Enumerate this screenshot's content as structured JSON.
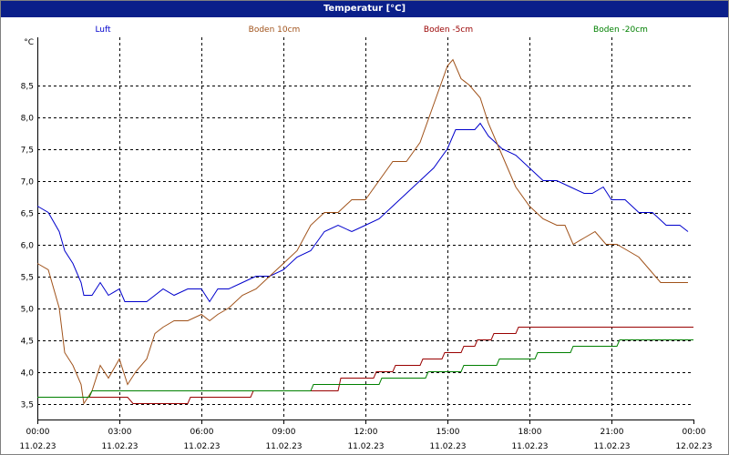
{
  "window_title": "Temperatur [°C]",
  "chart_data": {
    "type": "line",
    "title": "Temperatur [°C]",
    "ylabel": "°C",
    "xlabel": "",
    "ylim": [
      3.25,
      9.25
    ],
    "xlim": [
      0,
      24
    ],
    "y_ticks": [
      "3,5",
      "4,0",
      "4,5",
      "5,0",
      "5,5",
      "6,0",
      "6,5",
      "7,0",
      "7,5",
      "8,0",
      "8,5"
    ],
    "y_tick_values": [
      3.5,
      4.0,
      4.5,
      5.0,
      5.5,
      6.0,
      6.5,
      7.0,
      7.5,
      8.0,
      8.5
    ],
    "x_tick_hours": [
      0,
      3,
      6,
      9,
      12,
      15,
      18,
      21,
      24
    ],
    "x_tick_times": [
      "00:00",
      "03:00",
      "06:00",
      "09:00",
      "12:00",
      "15:00",
      "18:00",
      "21:00",
      "00:00"
    ],
    "x_tick_dates": [
      "11.02.23",
      "11.02.23",
      "11.02.23",
      "11.02.23",
      "11.02.23",
      "11.02.23",
      "11.02.23",
      "11.02.23",
      "12.02.23"
    ],
    "grid": true,
    "legend_position": "top",
    "series": [
      {
        "name": "Luft",
        "color": "#0000cc",
        "x": [
          0,
          0.4,
          0.8,
          1.0,
          1.3,
          1.6,
          1.7,
          2.0,
          2.3,
          2.6,
          3.0,
          3.2,
          3.6,
          4.0,
          4.6,
          5.0,
          5.5,
          6.0,
          6.3,
          6.6,
          7.0,
          7.5,
          8.0,
          8.5,
          9.0,
          9.5,
          10.0,
          10.5,
          11.0,
          11.5,
          12.0,
          12.5,
          13.0,
          13.5,
          14.0,
          14.5,
          15.0,
          15.3,
          15.6,
          16.0,
          16.2,
          16.5,
          17.0,
          17.5,
          18.0,
          18.5,
          19.0,
          19.5,
          20.0,
          20.3,
          20.7,
          21.0,
          21.5,
          22.0,
          22.5,
          23.0,
          23.5,
          23.8
        ],
        "values": [
          6.6,
          6.5,
          6.2,
          5.9,
          5.7,
          5.4,
          5.2,
          5.2,
          5.4,
          5.2,
          5.3,
          5.1,
          5.1,
          5.1,
          5.3,
          5.2,
          5.3,
          5.3,
          5.1,
          5.3,
          5.3,
          5.4,
          5.5,
          5.5,
          5.6,
          5.8,
          5.9,
          6.2,
          6.3,
          6.2,
          6.3,
          6.4,
          6.6,
          6.8,
          7.0,
          7.2,
          7.5,
          7.8,
          7.8,
          7.8,
          7.9,
          7.7,
          7.5,
          7.4,
          7.2,
          7.0,
          7.0,
          6.9,
          6.8,
          6.8,
          6.9,
          6.7,
          6.7,
          6.5,
          6.5,
          6.3,
          6.3,
          6.2
        ]
      },
      {
        "name": "Boden 10cm",
        "color": "#a0521a",
        "x": [
          0,
          0.4,
          0.8,
          1.0,
          1.3,
          1.6,
          1.7,
          2.0,
          2.3,
          2.6,
          3.0,
          3.3,
          3.6,
          4.0,
          4.3,
          4.6,
          5.0,
          5.5,
          6.0,
          6.3,
          6.6,
          7.0,
          7.5,
          8.0,
          8.5,
          9.0,
          9.5,
          10.0,
          10.5,
          11.0,
          11.5,
          12.0,
          12.5,
          13.0,
          13.5,
          14.0,
          14.5,
          15.0,
          15.2,
          15.5,
          15.8,
          16.2,
          16.5,
          17.0,
          17.5,
          18.0,
          18.5,
          19.0,
          19.3,
          19.6,
          20.0,
          20.4,
          20.8,
          21.2,
          21.6,
          22.0,
          22.4,
          22.8,
          23.2,
          23.8
        ],
        "values": [
          5.7,
          5.6,
          5.0,
          4.3,
          4.1,
          3.8,
          3.5,
          3.7,
          4.1,
          3.9,
          4.2,
          3.8,
          4.0,
          4.2,
          4.6,
          4.7,
          4.8,
          4.8,
          4.9,
          4.8,
          4.9,
          5.0,
          5.2,
          5.3,
          5.5,
          5.7,
          5.9,
          6.3,
          6.5,
          6.5,
          6.7,
          6.7,
          7.0,
          7.3,
          7.3,
          7.6,
          8.2,
          8.8,
          8.9,
          8.6,
          8.5,
          8.3,
          7.9,
          7.4,
          6.9,
          6.6,
          6.4,
          6.3,
          6.3,
          6.0,
          6.1,
          6.2,
          6.0,
          6.0,
          5.9,
          5.8,
          5.6,
          5.4,
          5.4,
          5.4
        ]
      },
      {
        "name": "Boden -5cm",
        "color": "#990000",
        "x": [
          0,
          3.3,
          3.5,
          5.5,
          5.6,
          7.8,
          7.9,
          11.0,
          11.1,
          12.3,
          12.4,
          13.0,
          13.1,
          14.0,
          14.1,
          14.8,
          14.9,
          15.5,
          15.6,
          16.0,
          16.1,
          16.6,
          16.7,
          17.5,
          17.6,
          24.0
        ],
        "values": [
          3.6,
          3.6,
          3.5,
          3.5,
          3.6,
          3.6,
          3.7,
          3.7,
          3.9,
          3.9,
          4.0,
          4.0,
          4.1,
          4.1,
          4.2,
          4.2,
          4.3,
          4.3,
          4.4,
          4.4,
          4.5,
          4.5,
          4.6,
          4.6,
          4.7,
          4.7
        ]
      },
      {
        "name": "Boden -20cm",
        "color": "#008000",
        "x": [
          0,
          1.9,
          2.0,
          10.0,
          10.1,
          12.5,
          12.6,
          14.2,
          14.3,
          15.5,
          15.6,
          16.8,
          16.9,
          18.2,
          18.3,
          19.5,
          19.6,
          21.2,
          21.3,
          24.0
        ],
        "values": [
          3.6,
          3.6,
          3.7,
          3.7,
          3.8,
          3.8,
          3.9,
          3.9,
          4.0,
          4.0,
          4.1,
          4.1,
          4.2,
          4.2,
          4.3,
          4.3,
          4.4,
          4.4,
          4.5,
          4.5
        ]
      }
    ]
  }
}
